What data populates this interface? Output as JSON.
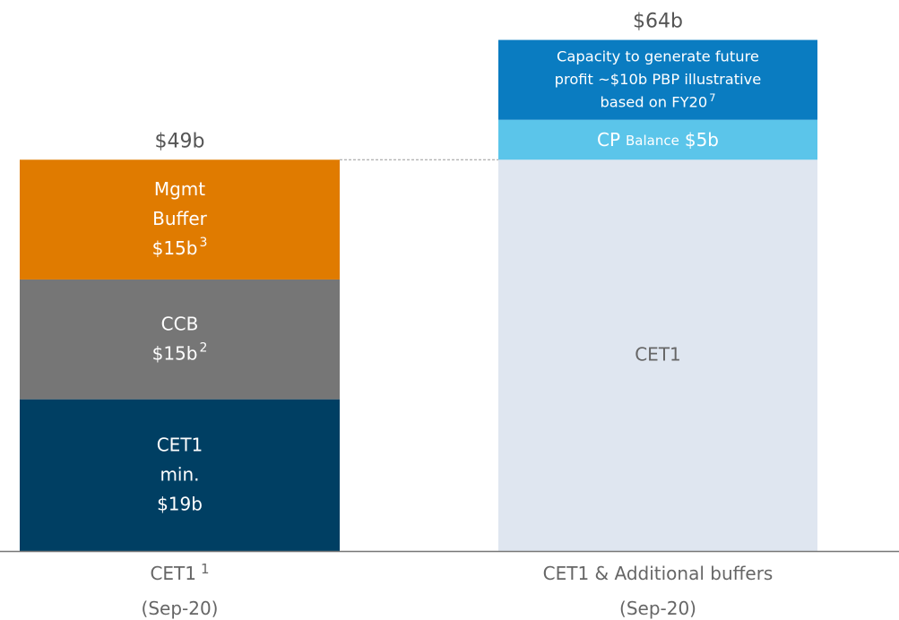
{
  "chart_data": {
    "type": "stacked_bar",
    "ylim": [
      0,
      69
    ],
    "bars": [
      {
        "category": [
          "CET1",
          "(Sep-20)"
        ],
        "category_sup": "1",
        "total": 49,
        "total_label": "$49b",
        "segments": [
          {
            "value": 19,
            "color": "#003f63",
            "lines": [
              "CET1",
              "min.",
              "$19b"
            ]
          },
          {
            "value": 15,
            "color": "#767676",
            "lines": [
              "CCB",
              "$15b"
            ],
            "sup": "2"
          },
          {
            "value": 15,
            "color": "#e07b00",
            "lines": [
              "Mgmt",
              "Buffer",
              "$15b"
            ],
            "sup": "3"
          }
        ]
      },
      {
        "category": [
          "CET1 & Additional buffers",
          "(Sep-20)"
        ],
        "total": 64,
        "total_label": "$64b",
        "segments": [
          {
            "value": 49,
            "color": "#dfe6f0",
            "text_color": "#666666",
            "lines": [
              "CET1"
            ]
          },
          {
            "value": 5,
            "color": "#5bc5ea",
            "parts": [
              "CP",
              "Balance",
              "$5b"
            ]
          },
          {
            "value": 10,
            "color": "#0a7cc1",
            "lines": [
              "Capacity to generate future",
              "profit ~$10b PBP illustrative",
              "based on FY20"
            ],
            "sup": "7"
          }
        ]
      }
    ]
  }
}
